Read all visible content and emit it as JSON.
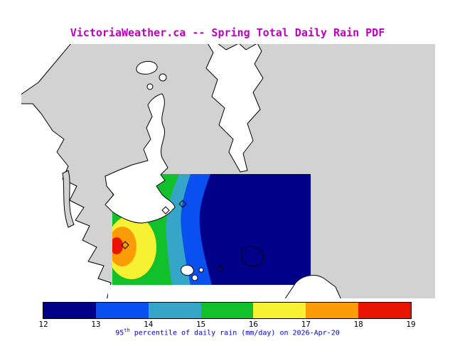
{
  "title": "VictoriaWeather.ca -- Spring Total Daily Rain PDF",
  "title_color": "#c000c0",
  "caption": {
    "prefix": "95",
    "superscript": "th",
    "suffix": " percentile of daily rain (mm/day) on 2026-Apr-20",
    "color": "#0000cd"
  },
  "colorbar": {
    "tick_labels": [
      "12",
      "13",
      "14",
      "15",
      "16",
      "17",
      "18",
      "19"
    ],
    "segment_colors": [
      "#000089",
      "#0a50f0",
      "#35a5c8",
      "#12c02c",
      "#f6f233",
      "#fb9b06",
      "#e81400"
    ],
    "min": 12,
    "max": 19,
    "units": "mm/day"
  },
  "map": {
    "sea_color": "#d2d2d2",
    "land_color": "#ffffff",
    "coast_color": "#000000",
    "station_marker_count": 3
  },
  "chart_data": {
    "type": "heatmap",
    "title": "VictoriaWeather.ca -- Spring Total Daily Rain PDF",
    "quantity": "95th percentile of daily rain (mm/day)",
    "valid_date": "2026-Apr-20",
    "scale_ticks": [
      12,
      13,
      14,
      15,
      16,
      17,
      18,
      19
    ],
    "scale_range": [
      12,
      19
    ],
    "legend_position": "bottom",
    "bands": [
      {
        "range": "12-13",
        "color": "#000089"
      },
      {
        "range": "13-14",
        "color": "#0a50f0"
      },
      {
        "range": "14-15",
        "color": "#35a5c8"
      },
      {
        "range": "15-16",
        "color": "#12c02c"
      },
      {
        "range": "16-17",
        "color": "#f6f233"
      },
      {
        "range": "17-18",
        "color": "#fb9b06"
      },
      {
        "range": "18-19",
        "color": "#e81400"
      }
    ],
    "pattern": "Filled contour field over the southern (Victoria) portion of the map: a small maximum bullseye of 18-19 mm/day on the western edge of the data domain, bands decreasing eastward through 17-18 (orange), 16-17 (yellow), 15-16 (green), 14-15 (cyan) and 13-14 (blue), with 12-13 mm/day (navy) covering the eastern half of the domain."
  }
}
